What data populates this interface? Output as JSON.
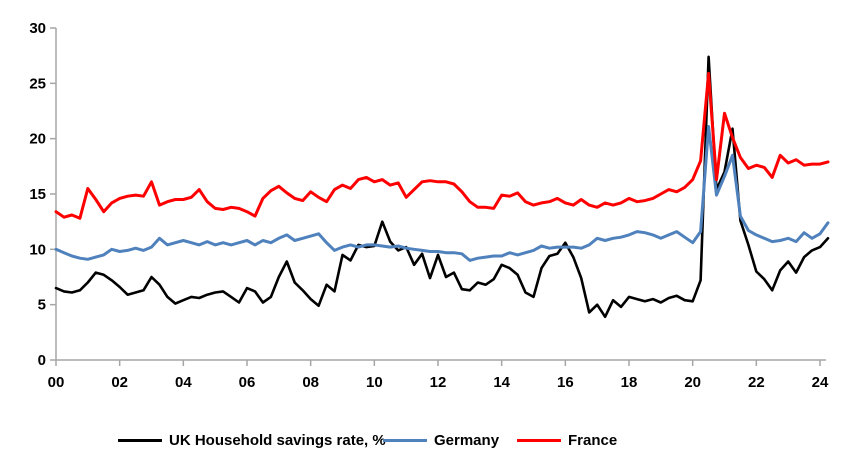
{
  "chart_data": {
    "type": "line",
    "title": "",
    "xlabel": "",
    "ylabel": "",
    "x_start_year": 2000,
    "x_step_years": 0.25,
    "xlim": [
      2000,
      2024.3
    ],
    "ylim": [
      0,
      30
    ],
    "grid": false,
    "legend_position": "bottom",
    "x_tick_labels": [
      "00",
      "02",
      "04",
      "06",
      "08",
      "10",
      "12",
      "14",
      "16",
      "18",
      "20",
      "22",
      "24"
    ],
    "y_tick_values": [
      0,
      5,
      10,
      15,
      20,
      25,
      30
    ],
    "axis_color": "#a6a6a6",
    "series": [
      {
        "name": "UK Household savings rate, %",
        "color": "#000000",
        "values": [
          6.5,
          6.2,
          6.1,
          6.3,
          7.0,
          7.9,
          7.7,
          7.2,
          6.6,
          5.9,
          6.1,
          6.3,
          7.5,
          6.8,
          5.7,
          5.1,
          5.4,
          5.7,
          5.6,
          5.9,
          6.1,
          6.2,
          5.7,
          5.2,
          6.5,
          6.2,
          5.2,
          5.7,
          7.5,
          8.9,
          7.0,
          6.3,
          5.5,
          4.9,
          6.8,
          6.2,
          9.5,
          9.0,
          10.4,
          10.2,
          10.3,
          12.5,
          10.7,
          9.9,
          10.2,
          8.6,
          9.6,
          7.4,
          9.5,
          7.5,
          7.9,
          6.4,
          6.3,
          7.0,
          6.8,
          7.3,
          8.6,
          8.3,
          7.7,
          6.1,
          5.7,
          8.3,
          9.4,
          9.6,
          10.6,
          9.3,
          7.4,
          4.3,
          5.0,
          3.9,
          5.4,
          4.8,
          5.7,
          5.5,
          5.3,
          5.5,
          5.2,
          5.6,
          5.8,
          5.4,
          5.3,
          7.2,
          27.4,
          15.4,
          17.0,
          20.9,
          12.6,
          10.4,
          8.0,
          7.3,
          6.3,
          8.1,
          8.9,
          7.9,
          9.3,
          9.9,
          10.2,
          11.0
        ]
      },
      {
        "name": "Germany",
        "color": "#4f81bd",
        "values": [
          10.0,
          9.7,
          9.4,
          9.2,
          9.1,
          9.3,
          9.5,
          10.0,
          9.8,
          9.9,
          10.1,
          9.9,
          10.2,
          11.0,
          10.4,
          10.6,
          10.8,
          10.6,
          10.4,
          10.7,
          10.4,
          10.6,
          10.4,
          10.6,
          10.8,
          10.4,
          10.8,
          10.6,
          11.0,
          11.3,
          10.8,
          11.0,
          11.2,
          11.4,
          10.6,
          9.9,
          10.2,
          10.4,
          10.2,
          10.4,
          10.4,
          10.3,
          10.2,
          10.3,
          10.1,
          10.0,
          9.9,
          9.8,
          9.8,
          9.7,
          9.7,
          9.6,
          9.0,
          9.2,
          9.3,
          9.4,
          9.4,
          9.7,
          9.5,
          9.7,
          9.9,
          10.3,
          10.1,
          10.2,
          10.2,
          10.2,
          10.1,
          10.4,
          11.0,
          10.8,
          11.0,
          11.1,
          11.3,
          11.6,
          11.5,
          11.3,
          11.0,
          11.3,
          11.6,
          11.1,
          10.6,
          11.6,
          21.1,
          14.9,
          16.6,
          18.5,
          13.0,
          11.7,
          11.3,
          11.0,
          10.7,
          10.8,
          11.0,
          10.7,
          11.5,
          11.0,
          11.4,
          12.4
        ]
      },
      {
        "name": "France",
        "color": "#ff0000",
        "values": [
          13.4,
          12.9,
          13.1,
          12.8,
          15.5,
          14.5,
          13.4,
          14.2,
          14.6,
          14.8,
          14.9,
          14.8,
          16.1,
          14.0,
          14.3,
          14.5,
          14.5,
          14.7,
          15.4,
          14.3,
          13.7,
          13.6,
          13.8,
          13.7,
          13.4,
          13.0,
          14.6,
          15.3,
          15.7,
          15.1,
          14.6,
          14.4,
          15.2,
          14.7,
          14.3,
          15.4,
          15.8,
          15.5,
          16.3,
          16.5,
          16.1,
          16.3,
          15.8,
          16.0,
          14.7,
          15.4,
          16.1,
          16.2,
          16.1,
          16.1,
          15.9,
          15.2,
          14.3,
          13.8,
          13.8,
          13.7,
          14.9,
          14.8,
          15.1,
          14.3,
          14.0,
          14.2,
          14.3,
          14.6,
          14.2,
          14.0,
          14.5,
          14.0,
          13.8,
          14.2,
          14.0,
          14.2,
          14.6,
          14.3,
          14.4,
          14.6,
          15.0,
          15.4,
          15.2,
          15.6,
          16.3,
          18.0,
          25.9,
          16.3,
          22.3,
          20.1,
          18.3,
          17.3,
          17.6,
          17.4,
          16.5,
          18.5,
          17.8,
          18.1,
          17.6,
          17.7,
          17.7,
          17.9
        ]
      }
    ]
  }
}
